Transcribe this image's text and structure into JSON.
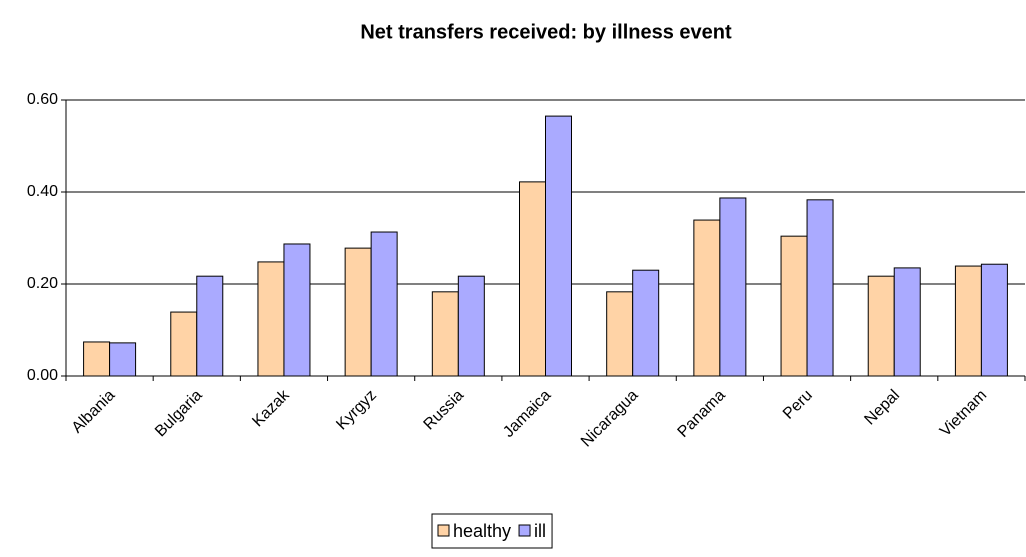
{
  "chart_data": {
    "type": "bar",
    "title": "Net transfers received: by illness event",
    "categories": [
      "Albania",
      "Bulgaria",
      "Kazak",
      "Kyrgyz",
      "Russia",
      "Jamaica",
      "Nicaragua",
      "Panama",
      "Peru",
      "Nepal",
      "Vietnam"
    ],
    "series": [
      {
        "name": "healthy",
        "color": "#ffd3a6",
        "values": [
          0.074,
          0.139,
          0.248,
          0.278,
          0.183,
          0.422,
          0.183,
          0.339,
          0.304,
          0.217,
          0.239
        ]
      },
      {
        "name": "ill",
        "color": "#aaaaff",
        "values": [
          0.072,
          0.217,
          0.287,
          0.313,
          0.217,
          0.565,
          0.23,
          0.387,
          0.383,
          0.235,
          0.243
        ]
      }
    ],
    "ylim": [
      0,
      0.6
    ],
    "yticks": [
      {
        "value": 0,
        "label": "0.00"
      },
      {
        "value": 0.2,
        "label": "0.20"
      },
      {
        "value": 0.4,
        "label": "0.40"
      },
      {
        "value": 0.6,
        "label": "0.60"
      }
    ],
    "grid": true,
    "legend": "bottom"
  }
}
